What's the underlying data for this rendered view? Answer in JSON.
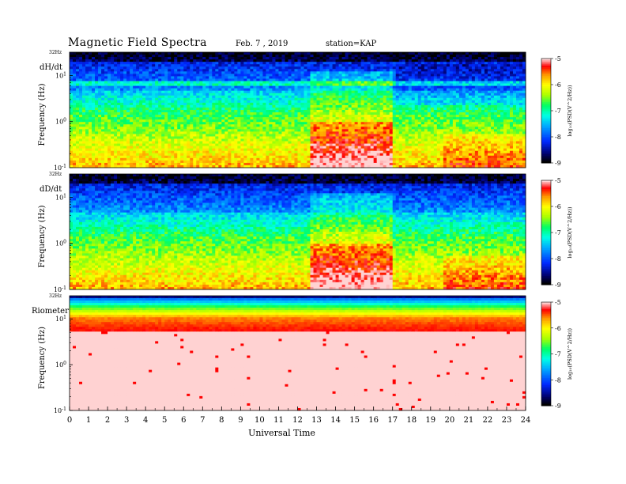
{
  "header": {
    "title": "Magnetic  Field  Spectra",
    "date": "Feb. 7  , 2019",
    "station": "station=KAP"
  },
  "chart_data": [
    {
      "type": "heatmap",
      "panel_label": "dH/dt",
      "ylabel": "Frequency  (Hz)",
      "ylim_label": "32Hz",
      "yticks": [
        {
          "base": "10",
          "exp": "1",
          "value": 10
        },
        {
          "base": "10",
          "exp": "0",
          "value": 1
        },
        {
          "base": "10",
          "exp": "-1",
          "value": 0.1
        }
      ],
      "ylim": [
        0.1,
        32
      ],
      "yscale": "log",
      "xlim": [
        0,
        24
      ],
      "colorbar": {
        "label": "log10(PSD(V^2/Hz))",
        "label_text": "log₁₀(PSD(V^2/Hz))",
        "range": [
          -9,
          -5
        ],
        "ticks": [
          "-5",
          "-6",
          "-7",
          "-8",
          "-9"
        ]
      },
      "description_profile": {
        "high_freq_dark_band_hz": [
          10,
          32
        ],
        "line_at_hz": 7
      }
    },
    {
      "type": "heatmap",
      "panel_label": "dD/dt",
      "ylabel": "Frequency  (Hz)",
      "ylim_label": "32Hz",
      "yticks": [
        {
          "base": "10",
          "exp": "1",
          "value": 10
        },
        {
          "base": "10",
          "exp": "0",
          "value": 1
        },
        {
          "base": "10",
          "exp": "-1",
          "value": 0.1
        }
      ],
      "ylim": [
        0.1,
        32
      ],
      "yscale": "log",
      "xlim": [
        0,
        24
      ],
      "colorbar": {
        "label": "log10(PSD(V^2/Hz))",
        "label_text": "log₁₀(PSD(V^2/Hz))",
        "range": [
          -9,
          -5
        ],
        "ticks": [
          "-5",
          "-6",
          "-7",
          "-8",
          "-9"
        ]
      }
    },
    {
      "type": "heatmap",
      "panel_label": "Riometer",
      "ylabel": "Frequency  (Hz)",
      "ylim_label": "32Hz",
      "yticks": [
        {
          "base": "10",
          "exp": "1",
          "value": 10
        },
        {
          "base": "10",
          "exp": "0",
          "value": 1
        },
        {
          "base": "10",
          "exp": "-1",
          "value": 0.1
        }
      ],
      "ylim": [
        0.1,
        32
      ],
      "yscale": "log",
      "xlim": [
        0,
        24
      ],
      "colorbar": {
        "label": "log10(PSD(V^2/Hz))",
        "label_text": "log₁₀(PSD(V^2/Hz))",
        "range": [
          -9,
          -5
        ],
        "ticks": [
          "-5",
          "-6",
          "-7",
          "-8",
          "-9"
        ]
      }
    }
  ],
  "xaxis": {
    "label": "Universal  Time",
    "ticks": [
      "0",
      "1",
      "2",
      "3",
      "4",
      "5",
      "6",
      "7",
      "8",
      "9",
      "10",
      "11",
      "12",
      "13",
      "14",
      "15",
      "16",
      "17",
      "18",
      "19",
      "20",
      "21",
      "22",
      "23",
      "24"
    ]
  },
  "colors": {
    "palette": [
      "#000000",
      "#00007a",
      "#0000ff",
      "#0096ff",
      "#00ffff",
      "#00ff64",
      "#b4ff00",
      "#ffff00",
      "#ffb400",
      "#ff0000",
      "#ffffff"
    ]
  }
}
